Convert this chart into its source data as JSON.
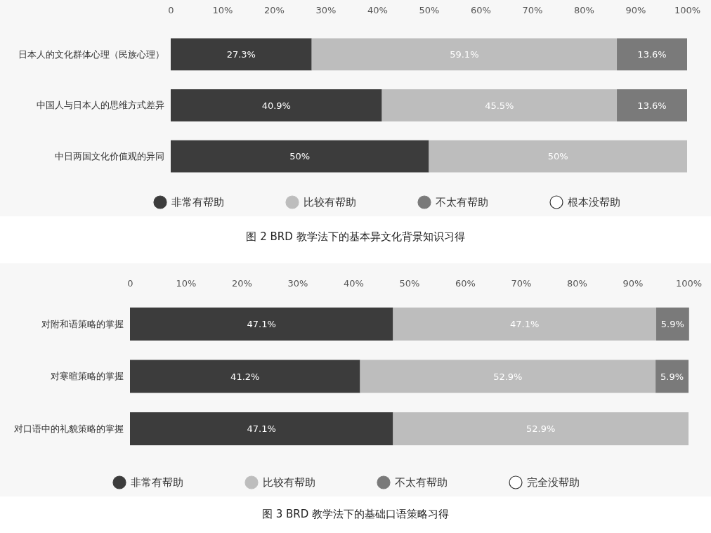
{
  "chart_data": [
    {
      "type": "bar",
      "orientation": "horizontal",
      "stacked": true,
      "title": "图 2  BRD 教学法下的基本异文化背景知识习得",
      "categories": [
        "日本人的文化群体心理（民族心理）",
        "中国人与日本人的思维方式差异",
        "中日两国文化价值观的异同"
      ],
      "series": [
        {
          "name": "非常有帮助",
          "color": "#3c3c3c",
          "values": [
            27.3,
            40.9,
            50
          ],
          "value_labels": [
            "27.3%",
            "40.9%",
            "50%"
          ]
        },
        {
          "name": "比较有帮助",
          "color": "#bdbdbd",
          "values": [
            59.1,
            45.5,
            50
          ],
          "value_labels": [
            "59.1%",
            "45.5%",
            "50%"
          ]
        },
        {
          "name": "不太有帮助",
          "color": "#7a7a7a",
          "values": [
            13.6,
            13.6,
            0
          ],
          "value_labels": [
            "13.6%",
            "13.6%",
            null
          ]
        },
        {
          "name": "根本没帮助",
          "color": "#ffffff",
          "values": [
            0,
            0,
            0
          ]
        }
      ],
      "xlim": [
        0,
        100
      ],
      "xticks": [
        0,
        {
          "value": 10,
          "label": "10%"
        },
        {
          "value": 20,
          "label": "20%"
        },
        {
          "value": 30,
          "label": "30%"
        },
        {
          "value": 40,
          "label": "40%"
        },
        {
          "value": 50,
          "label": "50%"
        },
        {
          "value": 60,
          "label": "60%"
        },
        {
          "value": 70,
          "label": "70%"
        },
        {
          "value": 80,
          "label": "80%"
        },
        {
          "value": 90,
          "label": "90%"
        },
        {
          "value": 100,
          "label": "100%"
        }
      ],
      "legend": "bottom",
      "grid": false
    },
    {
      "type": "bar",
      "orientation": "horizontal",
      "stacked": true,
      "title": "图 3  BRD 教学法下的基础口语策略习得",
      "categories": [
        "对附和语策略的掌握",
        "对寒暄策略的掌握",
        "对口语中的礼貌策略的掌握"
      ],
      "series": [
        {
          "name": "非常有帮助",
          "color": "#3c3c3c",
          "values": [
            47.1,
            41.2,
            47.1
          ],
          "value_labels": [
            "47.1%",
            "41.2%",
            "47.1%"
          ]
        },
        {
          "name": "比较有帮助",
          "color": "#bdbdbd",
          "values": [
            47.1,
            52.9,
            52.9
          ],
          "value_labels": [
            "47.1%",
            "52.9%",
            "52.9%"
          ]
        },
        {
          "name": "不太有帮助",
          "color": "#7a7a7a",
          "values": [
            5.9,
            5.9,
            0
          ],
          "value_labels": [
            "5.9%",
            "5.9%",
            null
          ]
        },
        {
          "name": "完全没帮助",
          "color": "#ffffff",
          "values": [
            0,
            0,
            0
          ]
        }
      ],
      "xlim": [
        0,
        100
      ],
      "xticks": [
        0,
        {
          "value": 10,
          "label": "10%"
        },
        {
          "value": 20,
          "label": "20%"
        },
        {
          "value": 30,
          "label": "30%"
        },
        {
          "value": 40,
          "label": "40%"
        },
        {
          "value": 50,
          "label": "50%"
        },
        {
          "value": 60,
          "label": "60%"
        },
        {
          "value": 70,
          "label": "70%"
        },
        {
          "value": 80,
          "label": "80%"
        },
        {
          "value": 90,
          "label": "90%"
        },
        {
          "value": 100,
          "label": "100%"
        }
      ],
      "legend": "bottom",
      "grid": false
    }
  ]
}
